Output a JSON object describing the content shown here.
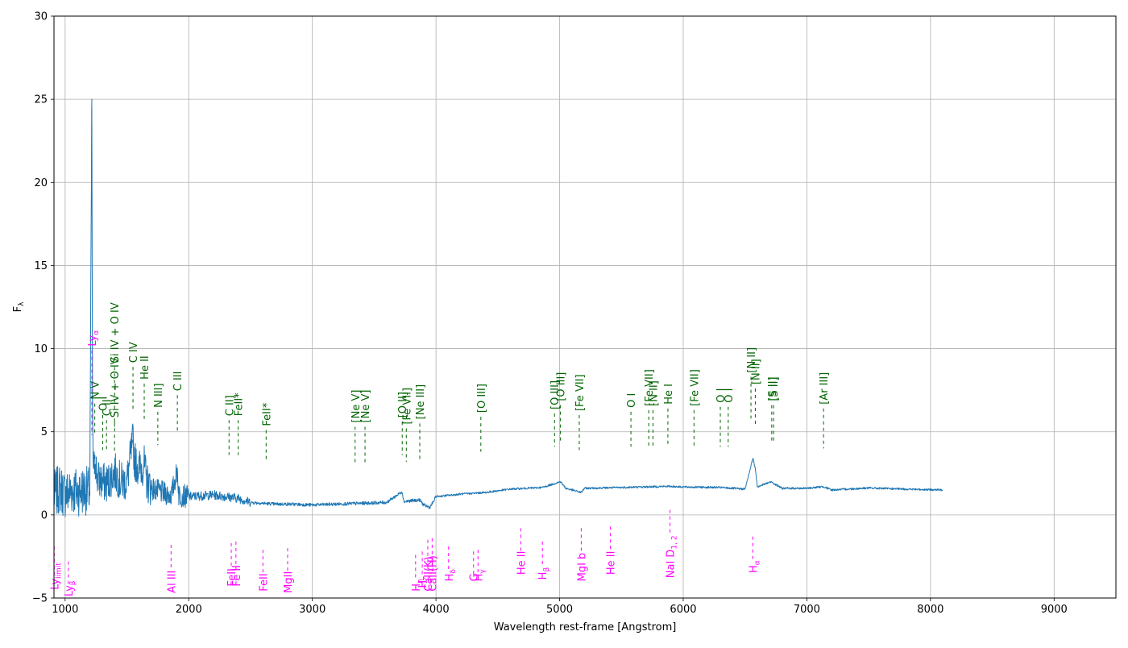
{
  "chart_data": {
    "type": "line",
    "xlabel": "Wavelength rest-frame [Angstrom]",
    "ylabel": "F",
    "ylabel_subscript": "λ",
    "xlim": [
      910,
      9500
    ],
    "ylim": [
      -5,
      30
    ],
    "grid": true,
    "x_ticks": [
      1000,
      2000,
      3000,
      4000,
      5000,
      6000,
      7000,
      8000,
      9000
    ],
    "y_ticks": [
      -5,
      0,
      5,
      10,
      15,
      20,
      25,
      30
    ],
    "colors": {
      "spectrum": "#1f77b4",
      "emission": "#006400",
      "absorption": "#ff00ff",
      "grid": "#b0b0b0"
    },
    "spectrum_anchor_points": [
      [
        910,
        1.2
      ],
      [
        960,
        1.6
      ],
      [
        1000,
        1.2
      ],
      [
        1050,
        1.5
      ],
      [
        1100,
        1.4
      ],
      [
        1150,
        1.5
      ],
      [
        1200,
        1.4
      ],
      [
        1216,
        25
      ],
      [
        1222,
        6
      ],
      [
        1230,
        2.2
      ],
      [
        1240,
        3.6
      ],
      [
        1260,
        2.2
      ],
      [
        1300,
        2.0
      ],
      [
        1335,
        1.9
      ],
      [
        1350,
        2.0
      ],
      [
        1400,
        2.6
      ],
      [
        1450,
        2.0
      ],
      [
        1500,
        2.0
      ],
      [
        1549,
        4.5
      ],
      [
        1560,
        3.3
      ],
      [
        1600,
        2.8
      ],
      [
        1640,
        3.0
      ],
      [
        1660,
        2.0
      ],
      [
        1700,
        1.6
      ],
      [
        1800,
        1.3
      ],
      [
        1860,
        1.2
      ],
      [
        1908,
        2.7
      ],
      [
        1920,
        1.2
      ],
      [
        2000,
        1.1
      ],
      [
        2200,
        1.2
      ],
      [
        2300,
        1.1
      ],
      [
        2400,
        1.0
      ],
      [
        2500,
        0.75
      ],
      [
        2700,
        0.65
      ],
      [
        2800,
        0.65
      ],
      [
        3000,
        0.6
      ],
      [
        3200,
        0.65
      ],
      [
        3400,
        0.7
      ],
      [
        3600,
        0.75
      ],
      [
        3727,
        1.4
      ],
      [
        3740,
        0.8
      ],
      [
        3800,
        0.85
      ],
      [
        3869,
        0.9
      ],
      [
        3900,
        0.6
      ],
      [
        3950,
        0.45
      ],
      [
        3980,
        0.8
      ],
      [
        4000,
        1.1
      ],
      [
        4200,
        1.25
      ],
      [
        4400,
        1.35
      ],
      [
        4600,
        1.55
      ],
      [
        4861,
        1.65
      ],
      [
        5007,
        2.0
      ],
      [
        5050,
        1.6
      ],
      [
        5175,
        1.35
      ],
      [
        5200,
        1.6
      ],
      [
        5500,
        1.65
      ],
      [
        5890,
        1.72
      ],
      [
        6000,
        1.68
      ],
      [
        6300,
        1.65
      ],
      [
        6500,
        1.55
      ],
      [
        6563,
        3.4
      ],
      [
        6583,
        2.8
      ],
      [
        6600,
        1.7
      ],
      [
        6716,
        2.0
      ],
      [
        6731,
        1.9
      ],
      [
        6800,
        1.6
      ],
      [
        7000,
        1.6
      ],
      [
        7135,
        1.7
      ],
      [
        7200,
        1.5
      ],
      [
        7500,
        1.62
      ],
      [
        7800,
        1.55
      ],
      [
        8100,
        1.5
      ]
    ],
    "emission_lines": [
      {
        "label": "Ly$_\\alpha$",
        "text": "Ly",
        "sub": "α",
        "x": 1216,
        "y_top": 10,
        "y_bottom": 4.8,
        "magenta": true
      },
      {
        "label": "N V",
        "text": "N V",
        "x": 1240,
        "y_top": 6.8,
        "y_bottom": 4.8
      },
      {
        "label": "O I",
        "text": "O I",
        "x": 1304,
        "y_top": 6.1,
        "y_bottom": 3.9
      },
      {
        "label": "C II",
        "text": "C II",
        "x": 1335,
        "y_top": 5.8,
        "y_bottom": 3.9
      },
      {
        "label": "Si IV + O IV",
        "text": "Si IV + O IV",
        "x": 1400,
        "y_top": 5.7,
        "y_bottom": 3.8
      },
      {
        "label": "Si IV + O IV",
        "text": "Si IV + O IV",
        "x": 1400,
        "y_top": 9.0,
        "y_bottom": 5.3
      },
      {
        "label": "C IV",
        "text": "C IV",
        "x": 1549,
        "y_top": 9.0,
        "y_bottom": 6.2
      },
      {
        "label": "He II",
        "text": "He II",
        "x": 1640,
        "y_top": 8.0,
        "y_bottom": 5.7
      },
      {
        "label": "N III]",
        "text": "N III]",
        "x": 1750,
        "y_top": 6.3,
        "y_bottom": 4.2
      },
      {
        "label": "C III",
        "text": "C III",
        "x": 1908,
        "y_top": 7.3,
        "y_bottom": 5.0
      },
      {
        "label": "C II]",
        "text": "C II]",
        "x": 2326,
        "y_top": 5.8,
        "y_bottom": 3.6
      },
      {
        "label": "FeII*",
        "text": "FeII*",
        "x": 2400,
        "y_top": 5.8,
        "y_bottom": 3.6
      },
      {
        "label": "FeII*",
        "text": "FeII*",
        "x": 2626,
        "y_top": 5.2,
        "y_bottom": 3.2
      },
      {
        "label": "[Ne V]",
        "text": "[Ne V]",
        "x": 3346,
        "y_top": 5.4,
        "y_bottom": 3.1
      },
      {
        "label": "[Ne V]",
        "text": "[Ne V]",
        "x": 3426,
        "y_top": 5.4,
        "y_bottom": 3.1
      },
      {
        "label": "[O II]",
        "text": "[O II]",
        "x": 3727,
        "y_top": 5.7,
        "y_bottom": 3.6
      },
      {
        "label": "[Fe VII]",
        "text": "[Fe VII]",
        "x": 3760,
        "y_top": 5.3,
        "y_bottom": 3.2
      },
      {
        "label": "[Ne III]",
        "text": "[Ne III]",
        "x": 3869,
        "y_top": 5.6,
        "y_bottom": 3.3
      },
      {
        "label": "[O III]",
        "text": "[O III]",
        "x": 4363,
        "y_top": 6.0,
        "y_bottom": 3.8
      },
      {
        "label": "[O III]",
        "text": "[O III]",
        "x": 4959,
        "y_top": 6.2,
        "y_bottom": 4.1
      },
      {
        "label": "[O III]",
        "text": "[O III]",
        "x": 5007,
        "y_top": 6.7,
        "y_bottom": 4.4
      },
      {
        "label": "[Fe VII]",
        "text": "[Fe VII]",
        "x": 5159,
        "y_top": 6.1,
        "y_bottom": 3.9
      },
      {
        "label": "O I",
        "text": "O I",
        "x": 5577,
        "y_top": 6.3,
        "y_bottom": 4.1
      },
      {
        "label": "[Fe VII]",
        "text": "[Fe VII]",
        "x": 5721,
        "y_top": 6.4,
        "y_bottom": 4.1
      },
      {
        "label": "[N II]",
        "text": "[N II]",
        "x": 5755,
        "y_top": 6.4,
        "y_bottom": 4.1
      },
      {
        "label": "He I",
        "text": "He I",
        "x": 5876,
        "y_top": 6.5,
        "y_bottom": 4.1
      },
      {
        "label": "[Fe VII]",
        "text": "[Fe VII]",
        "x": 6087,
        "y_top": 6.4,
        "y_bottom": 4.1
      },
      {
        "label": "O I",
        "text": "O I",
        "x": 6300,
        "y_top": 6.6,
        "y_bottom": 4.1
      },
      {
        "label": "O I",
        "text": "O I",
        "x": 6364,
        "y_top": 6.6,
        "y_bottom": 4.1
      },
      {
        "label": "[N II]",
        "text": "[N II]",
        "x": 6548,
        "y_top": 8.4,
        "y_bottom": 5.8
      },
      {
        "label": "[N II]",
        "text": "[N II]",
        "x": 6583,
        "y_top": 7.7,
        "y_bottom": 5.3
      },
      {
        "label": "[S II]",
        "text": "[S II]",
        "x": 6716,
        "y_top": 6.7,
        "y_bottom": 4.4
      },
      {
        "label": "[S II]",
        "text": "[S II]",
        "x": 6731,
        "y_top": 6.7,
        "y_bottom": 4.4
      },
      {
        "label": "[Ar III]",
        "text": "[Ar III]",
        "x": 7135,
        "y_top": 6.5,
        "y_bottom": 4.0
      }
    ],
    "absorption_lines": [
      {
        "text": "Ly",
        "sub": "limit",
        "x": 912,
        "y_label": -4.5,
        "y_top": -1.9,
        "y_bottom": -3.9
      },
      {
        "text": "Ly",
        "sub": "β",
        "x": 1026,
        "y_label": -4.9,
        "y_top": -2.8,
        "y_bottom": -4.3
      },
      {
        "text": "Al III",
        "x": 1857,
        "y_label": -4.7,
        "y_top": -1.8,
        "y_bottom": -3.3
      },
      {
        "text": "FeII",
        "x": 2344,
        "y_label": -4.3,
        "y_top": -1.7,
        "y_bottom": -3.3
      },
      {
        "text": "Fe II",
        "x": 2382,
        "y_label": -4.3,
        "y_top": -1.6,
        "y_bottom": -3.3
      },
      {
        "text": "FeII",
        "x": 2600,
        "y_label": -4.6,
        "y_top": -2.1,
        "y_bottom": -3.5
      },
      {
        "text": "MgII",
        "x": 2800,
        "y_label": -4.7,
        "y_top": -2.0,
        "y_bottom": -3.5
      },
      {
        "text": "H",
        "sub": "η",
        "x": 3835,
        "y_label": -4.6,
        "y_top": -2.4,
        "y_bottom": -3.9
      },
      {
        "text": "H",
        "sub": "ζ",
        "x": 3889,
        "y_label": -4.4,
        "y_top": -2.2,
        "y_bottom": -3.7
      },
      {
        "text": "CaII(K)",
        "x": 3934,
        "y_label": -4.6,
        "y_top": -1.5,
        "y_bottom": -3.4
      },
      {
        "text": "CaII(H)",
        "x": 3969,
        "y_label": -4.6,
        "y_top": -1.4,
        "y_bottom": -3.4
      },
      {
        "text": "H",
        "sub": "δ",
        "x": 4102,
        "y_label": -4.0,
        "y_top": -1.9,
        "y_bottom": -3.3
      },
      {
        "text": "G",
        "x": 4304,
        "y_label": -4.0,
        "y_top": -2.2,
        "y_bottom": -3.6
      },
      {
        "text": "H",
        "sub": "γ",
        "x": 4340,
        "y_label": -4.0,
        "y_top": -2.1,
        "y_bottom": -3.5
      },
      {
        "text": "He II",
        "x": 4686,
        "y_label": -3.6,
        "y_top": -0.8,
        "y_bottom": -2.3
      },
      {
        "text": "H",
        "sub": "β",
        "x": 4861,
        "y_label": -3.9,
        "y_top": -1.6,
        "y_bottom": -3.0
      },
      {
        "text": "MgI b",
        "x": 5175,
        "y_label": -4.0,
        "y_top": -0.8,
        "y_bottom": -2.3
      },
      {
        "text": "He II",
        "x": 5411,
        "y_label": -3.6,
        "y_top": -0.7,
        "y_bottom": -2.3
      },
      {
        "text": "NaI D",
        "sub": "1, 2",
        "x": 5893,
        "y_label": -3.8,
        "y_top": 0.3,
        "y_bottom": -1.1
      },
      {
        "text": "H",
        "sub": "α",
        "x": 6563,
        "y_label": -3.5,
        "y_top": -1.3,
        "y_bottom": -2.8
      }
    ]
  }
}
